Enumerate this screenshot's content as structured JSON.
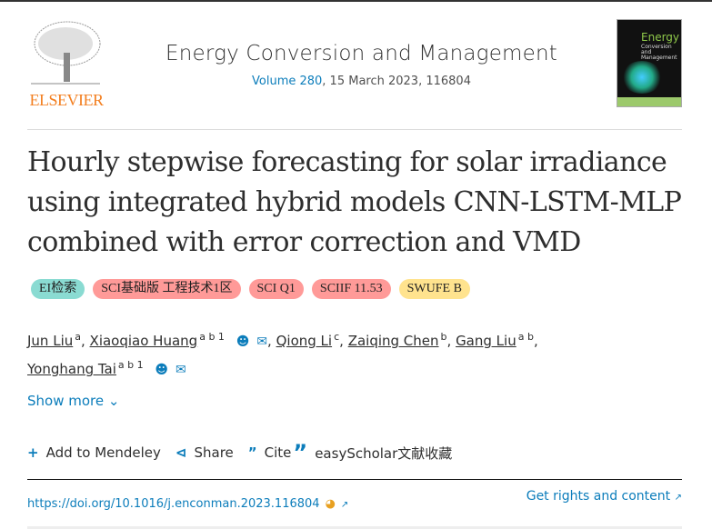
{
  "publisher": {
    "name": "ELSEVIER",
    "brand_color": "#f37f20"
  },
  "journal": {
    "title": "Energy Conversion and Management",
    "volume_link": "Volume 280",
    "volume_rest": ", 15 March 2023, 116804",
    "cover": {
      "title": "Energy",
      "subtitle": "Conversion and Management"
    }
  },
  "article": {
    "title": "Hourly stepwise forecasting for solar irradiance using integrated hybrid models CNN-LSTM-MLP combined with error correction and VMD"
  },
  "badges": [
    {
      "label": "EI检索",
      "color": "#8adbd2"
    },
    {
      "label": "SCI基础版 工程技术1区",
      "color": "#ff9a98"
    },
    {
      "label": "SCI Q1",
      "color": "#ff9a98"
    },
    {
      "label": "SCIIF 11.53",
      "color": "#ff9a98"
    },
    {
      "label": "SWUFE B",
      "color": "#ffe38e"
    }
  ],
  "authors": [
    {
      "name": "Jun Liu",
      "sup": "a"
    },
    {
      "name": "Xiaoqiao Huang",
      "sup": "a b 1",
      "icons": true
    },
    {
      "name": "Qiong Li",
      "sup": "c"
    },
    {
      "name": "Zaiqing Chen",
      "sup": "b"
    },
    {
      "name": "Gang Liu",
      "sup": "a b"
    },
    {
      "name": "Yonghang Tai",
      "sup": "a b 1",
      "icons": true
    }
  ],
  "show_more": "Show more",
  "actions": {
    "mendeley": "Add to Mendeley",
    "share": "Share",
    "cite": "Cite",
    "easyscholar": "easyScholar文献收藏"
  },
  "doi": "https://doi.org/10.1016/j.enconman.2023.116804",
  "rights": "Get rights and content",
  "accent_color": "#0c7dbb"
}
